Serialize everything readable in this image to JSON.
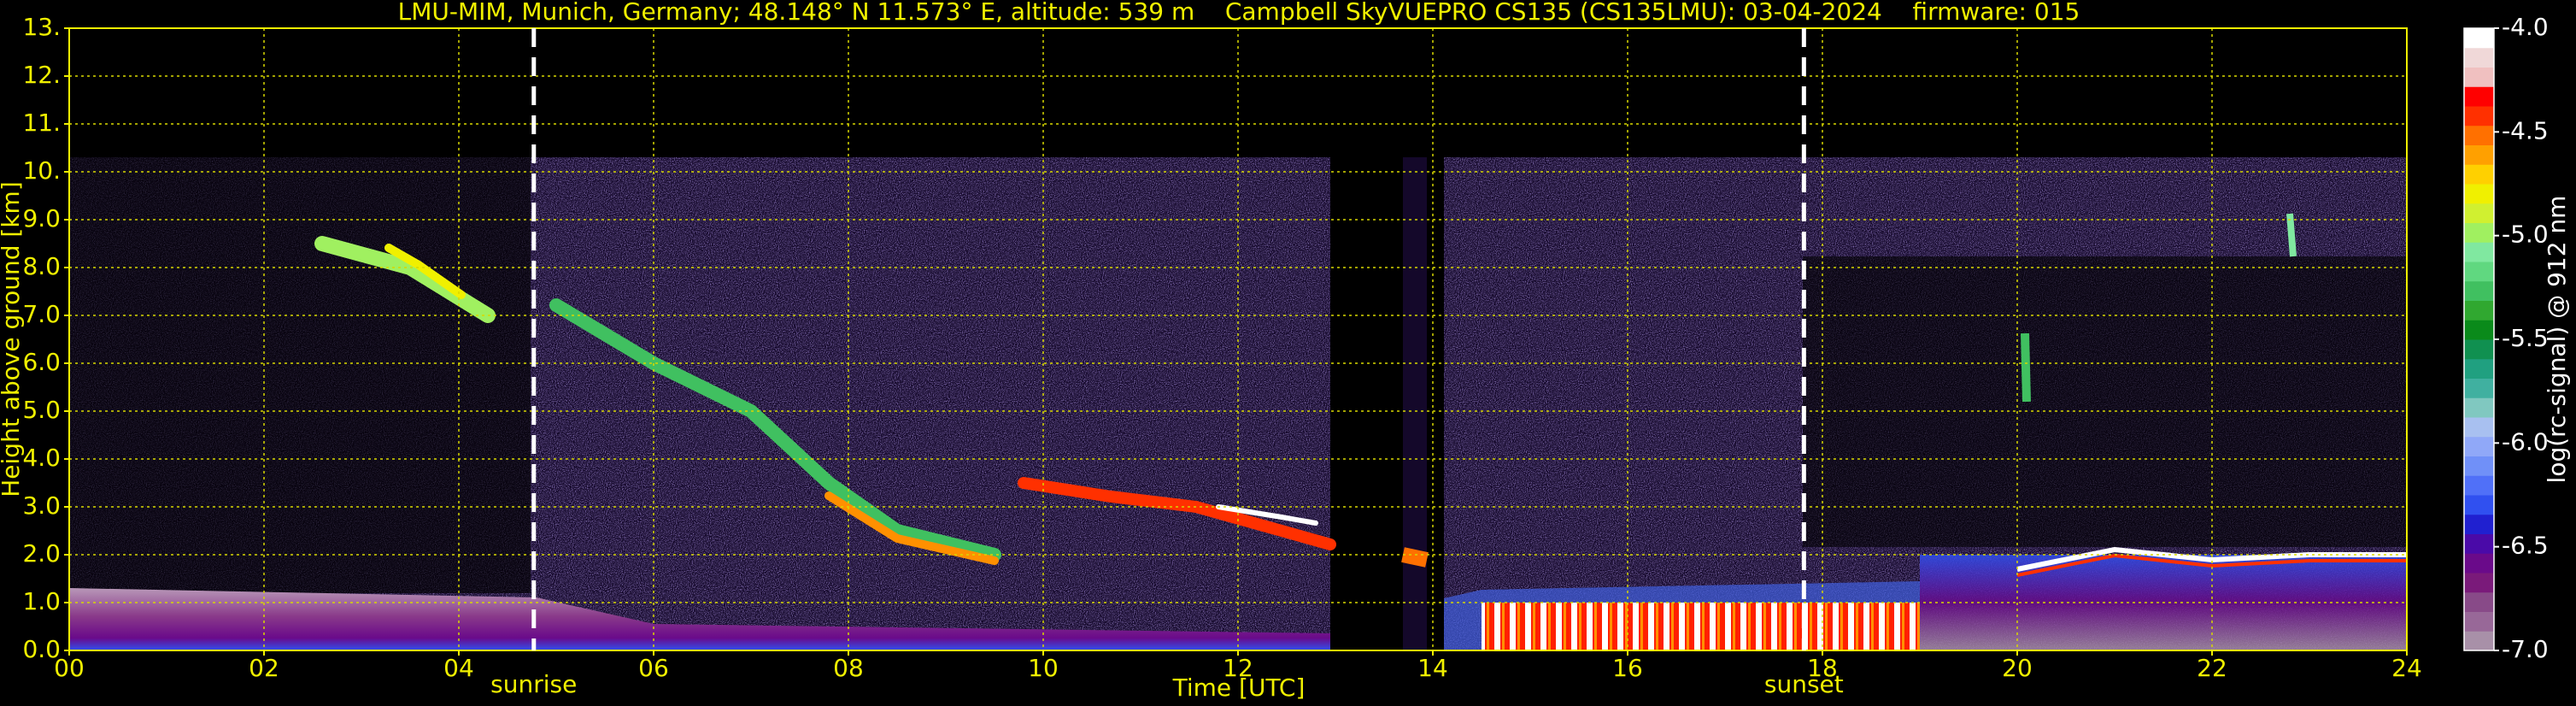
{
  "chart_data": {
    "type": "heatmap",
    "title": "LMU-MIM, Munich, Germany; 48.148° N 11.573° E, altitude: 539 m    Campbell SkyVUEPRO CS135 (CS135LMU): 03-04-2024    firmware: 015",
    "x_label": "Time [UTC]",
    "y_label": "Height above ground [km]",
    "colorbar_label": "log(rc-signal) @ 912 nm",
    "xlim": [
      0,
      24
    ],
    "xticks": [
      {
        "value": 0,
        "label": "00"
      },
      {
        "value": 2,
        "label": "02"
      },
      {
        "value": 4,
        "label": "04"
      },
      {
        "value": 6,
        "label": "06"
      },
      {
        "value": 8,
        "label": "08"
      },
      {
        "value": 10,
        "label": "10"
      },
      {
        "value": 12,
        "label": "12"
      },
      {
        "value": 14,
        "label": "14"
      },
      {
        "value": 16,
        "label": "16"
      },
      {
        "value": 18,
        "label": "18"
      },
      {
        "value": 20,
        "label": "20"
      },
      {
        "value": 22,
        "label": "22"
      },
      {
        "value": 24,
        "label": "24"
      }
    ],
    "ylim": [
      0,
      13
    ],
    "yticks": [
      {
        "value": 0,
        "label": "0.0"
      },
      {
        "value": 1,
        "label": "1.0"
      },
      {
        "value": 2,
        "label": "2.0"
      },
      {
        "value": 3,
        "label": "3.0"
      },
      {
        "value": 4,
        "label": "4.0"
      },
      {
        "value": 5,
        "label": "5.0"
      },
      {
        "value": 6,
        "label": "6.0"
      },
      {
        "value": 7,
        "label": "7.0"
      },
      {
        "value": 8,
        "label": "8.0"
      },
      {
        "value": 9,
        "label": "9.0"
      },
      {
        "value": 10,
        "label": "10."
      },
      {
        "value": 11,
        "label": "11."
      },
      {
        "value": 12,
        "label": "12."
      },
      {
        "value": 13,
        "label": "13."
      }
    ],
    "clim": [
      -7,
      -4
    ],
    "cticks": [
      {
        "value": -7,
        "label": "-7.0"
      },
      {
        "value": -6.5,
        "label": "-6.5"
      },
      {
        "value": -6,
        "label": "-6.0"
      },
      {
        "value": -5.5,
        "label": "-5.5"
      },
      {
        "value": -5,
        "label": "-5.0"
      },
      {
        "value": -4.5,
        "label": "-4.5"
      },
      {
        "value": -4,
        "label": "-4.0"
      }
    ],
    "colormap": [
      "#a890a8",
      "#986898",
      "#884a88",
      "#7a1a7a",
      "#6a0a8a",
      "#4a0aa8",
      "#2020d0",
      "#3050f0",
      "#5070f8",
      "#7090f8",
      "#90a8f8",
      "#a8c0f0",
      "#80c8c0",
      "#40b0a0",
      "#20a080",
      "#109050",
      "#0a8a1a",
      "#30a830",
      "#40c060",
      "#60d880",
      "#80e8a0",
      "#a0f060",
      "#d0f030",
      "#f0f000",
      "#ffd000",
      "#ffa000",
      "#ff7000",
      "#ff3000",
      "#ff0000",
      "#f0c0c0",
      "#f0d8d8",
      "#ffffff"
    ],
    "grid": true,
    "grid_color": "#d8d800",
    "text_color": "#f0f000",
    "annotations": [
      {
        "label": "sunrise",
        "x": 4.77
      },
      {
        "label": "sunset",
        "x": 17.81
      }
    ]
  }
}
